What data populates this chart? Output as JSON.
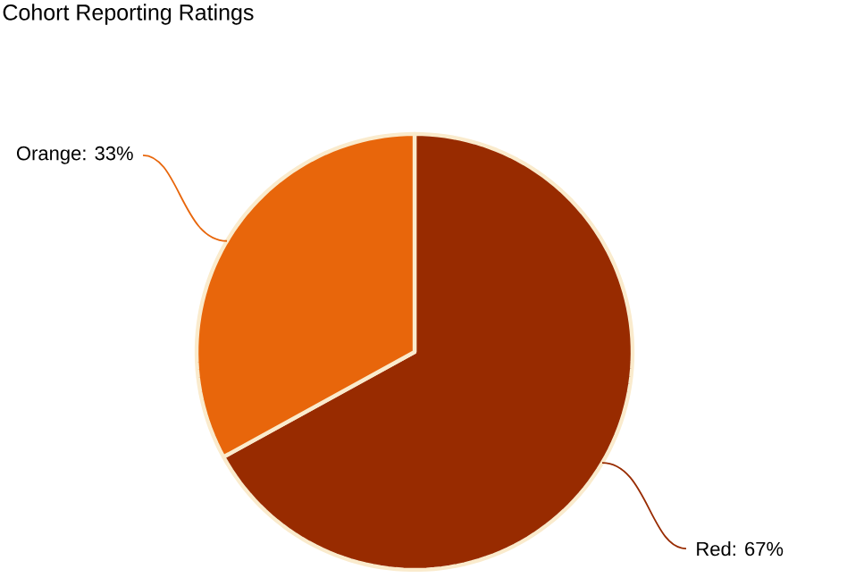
{
  "chart_data": {
    "type": "pie",
    "title": "Cohort Reporting Ratings",
    "categories": [
      "Red",
      "Orange"
    ],
    "values": [
      67,
      33
    ],
    "value_labels": [
      ": 67%",
      ": 33%"
    ],
    "colors": [
      "#982b00",
      "#e8660b"
    ]
  }
}
